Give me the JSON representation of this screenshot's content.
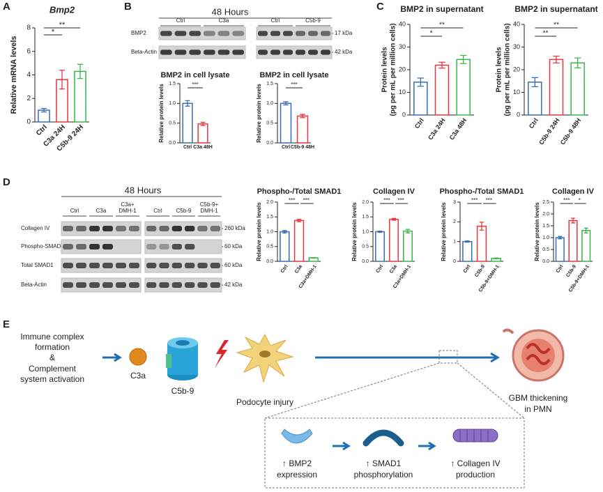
{
  "panel_labels": [
    "A",
    "B",
    "C",
    "D",
    "E"
  ],
  "blot_b": {
    "title": "48 Hours",
    "groups": [
      "Ctrl",
      "C3a",
      "Ctrl",
      "C5b-9"
    ],
    "rows": [
      "BMP2",
      "Beta-Actin"
    ],
    "sizes": [
      "17 kDa",
      "42 kDa"
    ]
  },
  "blot_d": {
    "title": "48 Hours",
    "groups": [
      [
        "Ctrl"
      ],
      [
        "C3a"
      ],
      [
        "C3a+",
        "DMH-1"
      ],
      [
        "Ctrl"
      ],
      [
        "C5b-9"
      ],
      [
        "C5b-9+",
        "DMH-1"
      ]
    ],
    "rows": [
      "Collagen IV",
      "Phospho-SMAD1",
      "Total SMAD1",
      "Beta-Actin"
    ],
    "sizes": [
      "260 kDa",
      "60 kDa",
      "60 kDa",
      "42 kDa"
    ]
  },
  "diagram": {
    "trigger": [
      "Immune complex",
      "formation",
      "&",
      "Complement",
      "system activation"
    ],
    "c3a": "C3a",
    "c5b9": "C5b-9",
    "injury": "Podocyte injury",
    "outcome": [
      "GBM thickening",
      "in PMN"
    ],
    "steps": [
      [
        "↑ BMP2",
        "expression"
      ],
      [
        "↑ SMAD1",
        "phosphorylation"
      ],
      [
        "↑ Collagen IV",
        "production"
      ]
    ]
  },
  "chart_data": [
    {
      "type": "bar",
      "title": "Bmp2",
      "ylabel": "Relative mRNA levels",
      "categories": [
        "Ctrl",
        "C3a 24H",
        "C5b-9 24H"
      ],
      "values": [
        1.0,
        3.6,
        4.3
      ],
      "errors": [
        0.15,
        0.8,
        0.6
      ],
      "colors": [
        "#3a6bb5",
        "#e8353f",
        "#3ab54a"
      ],
      "ylim": [
        0,
        8
      ],
      "yticks": [
        0,
        2,
        4,
        6,
        8
      ],
      "annotations": [
        "*",
        "**"
      ]
    },
    {
      "type": "bar",
      "title": "BMP2 in cell lysate",
      "ylabel": "Relative protein levels",
      "categories": [
        "Ctrl",
        "C3a 48H"
      ],
      "values": [
        1.0,
        0.48
      ],
      "errors": [
        0.07,
        0.04
      ],
      "colors": [
        "#3a6bb5",
        "#e8353f"
      ],
      "ylim": [
        0,
        1.5
      ],
      "yticks": [
        {
          "value": 0,
          "label": "0.0"
        },
        0.5,
        {
          "value": 1,
          "label": "1.0"
        },
        1.5
      ],
      "annotations": [
        "***"
      ]
    },
    {
      "type": "bar",
      "title": "BMP2 in cell lysate",
      "ylabel": "Relative protein levels",
      "categories": [
        "Ctrl",
        "C5b-9 48H"
      ],
      "values": [
        1.0,
        0.68
      ],
      "errors": [
        0.04,
        0.04
      ],
      "colors": [
        "#3a6bb5",
        "#e8353f"
      ],
      "ylim": [
        0,
        1.5
      ],
      "yticks": [
        {
          "value": 0,
          "label": "0.0"
        },
        0.5,
        {
          "value": 1,
          "label": "1.0"
        },
        1.5
      ],
      "annotations": [
        "***"
      ]
    },
    {
      "type": "bar",
      "title": "BMP2 in supernatant",
      "ylabel": [
        "Protein levels",
        "(pg per mL per million cells)"
      ],
      "categories": [
        "Ctrl",
        "C3a 24H",
        "C3a 48H"
      ],
      "values": [
        14.5,
        22,
        24.5
      ],
      "errors": [
        1.8,
        1.3,
        1.8
      ],
      "colors": [
        "#3a6bb5",
        "#e8353f",
        "#3ab54a"
      ],
      "ylim": [
        0,
        40
      ],
      "yticks": [
        0,
        10,
        20,
        30,
        40
      ],
      "annotations": [
        "*",
        "**"
      ]
    },
    {
      "type": "bar",
      "title": "BMP2 in supernatant",
      "ylabel": [
        "Protein levels",
        "(pg per mL per million cells)"
      ],
      "categories": [
        "Ctrl",
        "C5b-9 24H",
        "C5b-9 48H"
      ],
      "values": [
        14.5,
        24.5,
        23
      ],
      "errors": [
        2,
        1.5,
        2.2
      ],
      "colors": [
        "#3a6bb5",
        "#e8353f",
        "#3ab54a"
      ],
      "ylim": [
        0,
        40
      ],
      "yticks": [
        0,
        10,
        20,
        30,
        40
      ],
      "annotations": [
        "**",
        "**"
      ]
    },
    {
      "type": "bar",
      "title": "Phospho-/Total SMAD1",
      "ylabel": "Relative protein levels",
      "categories": [
        "Ctrl",
        "C3a",
        "C3a+DMH-1"
      ],
      "values": [
        1.0,
        1.38,
        0.12
      ],
      "errors": [
        0.04,
        0.04,
        0.01
      ],
      "colors": [
        "#3a6bb5",
        "#e8353f",
        "#3ab54a"
      ],
      "ylim": [
        0,
        2
      ],
      "yticks": [
        {
          "value": 0,
          "label": "0.0"
        },
        0.5,
        {
          "value": 1,
          "label": "1.0"
        },
        1.5,
        {
          "value": 2,
          "label": "2.0"
        }
      ],
      "annotations": [
        "***",
        "***"
      ]
    },
    {
      "type": "bar",
      "title": "Collagen IV",
      "ylabel": "Relative protein levels",
      "categories": [
        "Ctrl",
        "C3a",
        "C3a+DMH-1"
      ],
      "values": [
        1.0,
        1.42,
        1.02
      ],
      "errors": [
        0.02,
        0.03,
        0.06
      ],
      "colors": [
        "#3a6bb5",
        "#e8353f",
        "#3ab54a"
      ],
      "ylim": [
        0,
        2
      ],
      "yticks": [
        {
          "value": 0,
          "label": "0.0"
        },
        0.5,
        {
          "value": 1,
          "label": "1.0"
        },
        1.5,
        {
          "value": 2,
          "label": "2.0"
        }
      ],
      "annotations": [
        "***",
        "***"
      ]
    },
    {
      "type": "bar",
      "title": "Phospho-/Total SMAD1",
      "ylabel": "Relative protein levels",
      "categories": [
        "Ctrl",
        "C5b-9",
        "C5b-9+DMH-1"
      ],
      "values": [
        1.0,
        1.78,
        0.15
      ],
      "errors": [
        0.03,
        0.2,
        0.02
      ],
      "colors": [
        "#3a6bb5",
        "#e8353f",
        "#3ab54a"
      ],
      "ylim": [
        0,
        3
      ],
      "yticks": [
        0,
        1,
        2,
        3
      ],
      "annotations": [
        "***",
        "***"
      ]
    },
    {
      "type": "bar",
      "title": "Collagen IV",
      "ylabel": "Relative protein levels",
      "categories": [
        "Ctrl",
        "C5b-9",
        "C5b-9+DMH-1"
      ],
      "values": [
        1.0,
        1.72,
        1.3
      ],
      "errors": [
        0.05,
        0.1,
        0.1
      ],
      "colors": [
        "#3a6bb5",
        "#e8353f",
        "#3ab54a"
      ],
      "ylim": [
        0,
        2.5
      ],
      "yticks": [
        {
          "value": 0,
          "label": "0.0"
        },
        0.5,
        {
          "value": 1,
          "label": "1.0"
        },
        1.5,
        {
          "value": 2,
          "label": "2.0"
        },
        2.5
      ],
      "annotations": [
        "***",
        "*"
      ]
    }
  ]
}
